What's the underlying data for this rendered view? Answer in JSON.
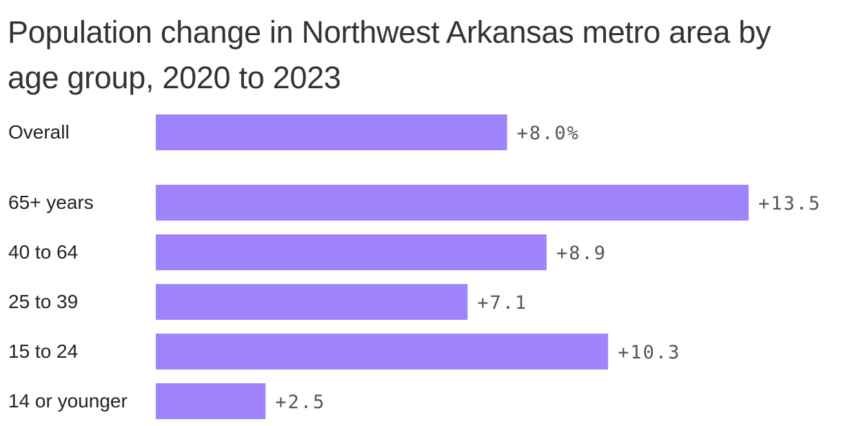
{
  "chart_data": {
    "type": "bar",
    "orientation": "horizontal",
    "title": "Population change in Northwest Arkansas metro area by age group, 2020 to 2023",
    "categories": [
      "Overall",
      "65+ years",
      "40 to 64",
      "25 to 39",
      "15 to 24",
      "14 or younger"
    ],
    "values": [
      8.0,
      13.5,
      8.9,
      7.1,
      10.3,
      2.5
    ],
    "value_labels": [
      "+8.0%",
      "+13.5",
      "+8.9",
      "+7.1",
      "+10.3",
      "+2.5"
    ],
    "xlim": [
      0,
      13.5
    ],
    "grid": false,
    "colors": {
      "bar": "#a084fc",
      "title": "#333333",
      "value_label": "#555555",
      "category_label": "#222222"
    }
  }
}
